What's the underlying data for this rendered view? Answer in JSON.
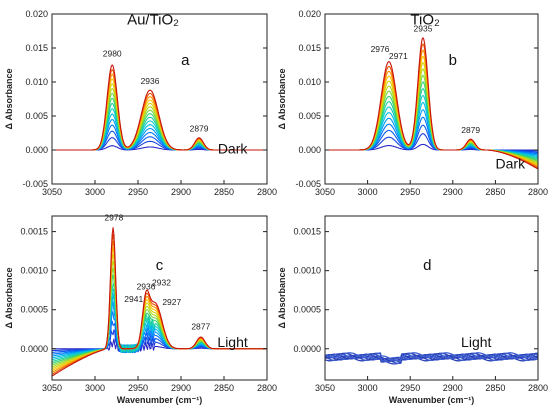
{
  "figure": {
    "y_axis_label": "Δ Absorbance",
    "x_axis_label": "Wavenumber (cm⁻¹)"
  },
  "chart_data": [
    {
      "panel": "a",
      "type": "line",
      "title": "Au/TiO₂",
      "condition": "Dark",
      "xlim": [
        3050,
        2800
      ],
      "ylim": [
        -0.005,
        0.02
      ],
      "xticks": [
        3050,
        3000,
        2950,
        2900,
        2850,
        2800
      ],
      "yticks": [
        -0.005,
        0.0,
        0.005,
        0.01,
        0.015,
        0.02
      ],
      "ytick_labels": [
        "-0.005",
        "0.000",
        "0.005",
        "0.010",
        "0.015",
        "0.020"
      ],
      "show_xticklabels": true,
      "show_xlabel": false,
      "peak_labels": [
        {
          "text": "2980",
          "x": 2980,
          "y": 0.013
        },
        {
          "text": "2936",
          "x": 2936,
          "y": 0.009
        },
        {
          "text": "2879",
          "x": 2879,
          "y": 0.002
        }
      ],
      "peaks": [
        [
          2980,
          0.0125,
          6
        ],
        [
          2936,
          0.0088,
          10
        ],
        [
          2879,
          0.0018,
          5
        ]
      ],
      "baseline": 0.0,
      "spectra_count": 16
    },
    {
      "panel": "b",
      "type": "line",
      "title": "TiO₂",
      "condition": "Dark",
      "xlim": [
        3050,
        2800
      ],
      "ylim": [
        -0.005,
        0.02
      ],
      "xticks": [
        3050,
        3000,
        2950,
        2900,
        2850,
        2800
      ],
      "yticks": [
        -0.005,
        0.0,
        0.005,
        0.01,
        0.015,
        0.02
      ],
      "ytick_labels": [
        "-0.005",
        "0.000",
        "0.005",
        "0.010",
        "0.015",
        "0.020"
      ],
      "show_xticklabels": true,
      "show_xlabel": false,
      "peak_labels": [
        {
          "text": "2976",
          "x": 2976,
          "y": 0.0135
        },
        {
          "text": "2971",
          "x": 2971,
          "y": 0.0128
        },
        {
          "text": "2935",
          "x": 2935,
          "y": 0.0167
        },
        {
          "text": "2879",
          "x": 2879,
          "y": 0.0018
        }
      ],
      "peaks": [
        [
          2975,
          0.013,
          9
        ],
        [
          2935,
          0.0165,
          6
        ],
        [
          2879,
          0.0016,
          5
        ]
      ],
      "baseline": 0.0,
      "drift_low_wavenumber": -0.0028,
      "spectra_count": 16
    },
    {
      "panel": "c",
      "type": "line",
      "condition": "Light",
      "xlim": [
        3050,
        2800
      ],
      "ylim": [
        -0.0004,
        0.0017
      ],
      "xticks": [
        3050,
        3000,
        2950,
        2900,
        2850,
        2800
      ],
      "yticks": [
        0.0,
        0.0005,
        0.001,
        0.0015
      ],
      "ytick_labels": [
        "0.0000",
        "0.0005",
        "0.0010",
        "0.0015"
      ],
      "show_xticklabels": true,
      "show_xlabel": true,
      "peak_labels": [
        {
          "text": "2978",
          "x": 2978,
          "y": 0.00158
        },
        {
          "text": "2941",
          "x": 2941,
          "y": 0.00055
        },
        {
          "text": "2936",
          "x": 2936,
          "y": 0.00068
        },
        {
          "text": "2932",
          "x": 2932,
          "y": 0.00076
        },
        {
          "text": "2927",
          "x": 2927,
          "y": 0.00064
        },
        {
          "text": "2877",
          "x": 2877,
          "y": 0.00018
        }
      ],
      "peaks": [
        [
          2979,
          0.00155,
          3
        ],
        [
          2941,
          0.0005,
          4
        ],
        [
          2930,
          0.00058,
          8
        ],
        [
          2877,
          0.00015,
          5
        ]
      ],
      "baseline": 0.0,
      "drift_high_wavenumber": -0.00035,
      "spectra_count": 16
    },
    {
      "panel": "d",
      "type": "line",
      "condition": "Light",
      "xlim": [
        3050,
        2800
      ],
      "ylim": [
        -0.0004,
        0.0017
      ],
      "xticks": [
        3050,
        3000,
        2950,
        2900,
        2850,
        2800
      ],
      "yticks": [
        0.0,
        0.0005,
        0.001,
        0.0015
      ],
      "ytick_labels": [
        "0.0000",
        "0.0005",
        "0.0010",
        "0.0015"
      ],
      "show_xticklabels": true,
      "show_xlabel": true,
      "peak_labels": [],
      "peaks": [],
      "baseline": -0.0001,
      "spectra_count": 8
    }
  ]
}
